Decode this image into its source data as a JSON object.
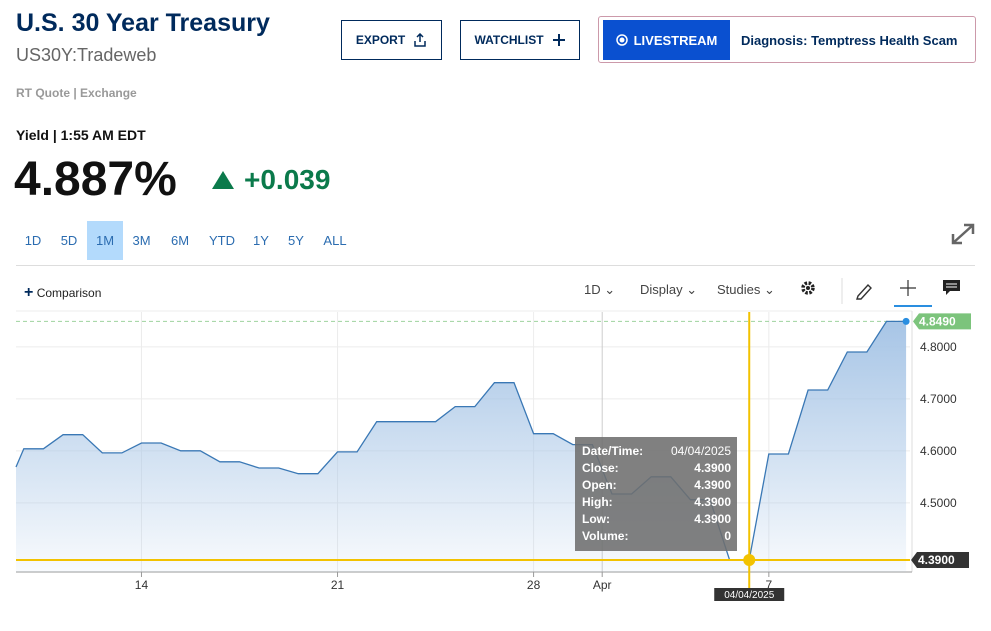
{
  "header": {
    "title": "U.S. 30 Year Treasury",
    "symbol": "US30Y:Tradeweb",
    "export": "EXPORT",
    "watchlist": "WATCHLIST",
    "livestream": "LIVESTREAM",
    "headline": "Diagnosis: Temptress Health Scam",
    "quote_source": "RT Quote | Exchange"
  },
  "quote": {
    "label": "Yield | 1:55 AM EDT",
    "price": "4.887%",
    "change": "+0.039"
  },
  "ranges": [
    "1D",
    "5D",
    "1M",
    "3M",
    "6M",
    "YTD",
    "1Y",
    "5Y",
    "ALL"
  ],
  "selected_range": 2,
  "toolbar": {
    "comparison": "Comparison",
    "interval": "1D",
    "display": "Display",
    "studies": "Studies"
  },
  "chart_data": {
    "type": "area",
    "x": [
      -0.2,
      0,
      0.5,
      1,
      1.5,
      2,
      2.5,
      3,
      3.5,
      4,
      4.5,
      5,
      5.5,
      6,
      6.5,
      7,
      7.5,
      8,
      8.5,
      9,
      9.5,
      10,
      10.5,
      11,
      11.5,
      12,
      12.5,
      13,
      13.5,
      14,
      14.5,
      15,
      15.5,
      16,
      16.5,
      17,
      17.5,
      18,
      18.5,
      19,
      19.5,
      20,
      20.5,
      21,
      21.5,
      22,
      22.5
    ],
    "values": [
      4.569,
      4.604,
      4.604,
      4.631,
      4.631,
      4.596,
      4.596,
      4.615,
      4.615,
      4.6,
      4.6,
      4.579,
      4.579,
      4.567,
      4.567,
      4.556,
      4.556,
      4.598,
      4.598,
      4.656,
      4.656,
      4.656,
      4.656,
      4.685,
      4.685,
      4.731,
      4.731,
      4.633,
      4.633,
      4.612,
      4.612,
      4.517,
      4.517,
      4.55,
      4.55,
      4.506,
      4.506,
      4.39,
      4.39,
      4.594,
      4.594,
      4.717,
      4.717,
      4.79,
      4.79,
      4.849,
      4.849
    ],
    "color": "#3a78b5",
    "xlim": [
      -0.2,
      22.6
    ],
    "ylim": [
      4.367,
      4.867
    ],
    "xticks": [
      {
        "value": 3,
        "label": "14"
      },
      {
        "value": 8,
        "label": "21"
      },
      {
        "value": 13,
        "label": "28"
      },
      {
        "value": 14.75,
        "label": "Apr"
      },
      {
        "value": 19,
        "label": "7"
      }
    ],
    "yticks": [
      {
        "value": 4.8,
        "label": "4.8000"
      },
      {
        "value": 4.7,
        "label": "4.7000"
      },
      {
        "value": 4.6,
        "label": "4.6000"
      },
      {
        "value": 4.5,
        "label": "4.5000"
      }
    ],
    "grid": true,
    "last": {
      "value": 4.849,
      "label": "4.8490"
    },
    "crosshair": {
      "x": 18.5,
      "x_label": "04/04/2025",
      "value": 4.39,
      "label": "4.3900"
    },
    "tooltip": [
      {
        "label": "Date/Time:",
        "value": "04/04/2025"
      },
      {
        "label": "Close:",
        "value": "4.3900"
      },
      {
        "label": "Open:",
        "value": "4.3900"
      },
      {
        "label": "High:",
        "value": "4.3900"
      },
      {
        "label": "Low:",
        "value": "4.3900"
      },
      {
        "label": "Volume:",
        "value": "0"
      }
    ]
  }
}
